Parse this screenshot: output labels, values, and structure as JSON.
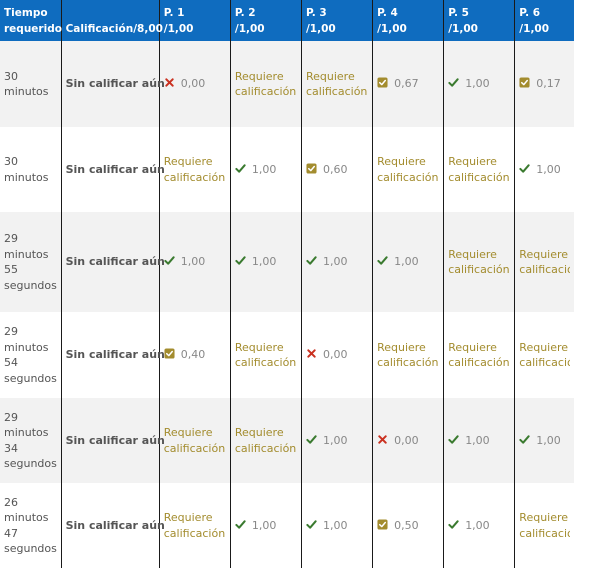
{
  "header": {
    "time_line1": "Tiempo",
    "time_line2": "requerido",
    "grade_label": "Calificación/8,00",
    "questions": [
      {
        "label": "P. 1",
        "max": "/1,00"
      },
      {
        "label": "P. 2",
        "max": "/1,00"
      },
      {
        "label": "P. 3",
        "max": "/1,00"
      },
      {
        "label": "P. 4",
        "max": "/1,00"
      },
      {
        "label": "P. 5",
        "max": "/1,00"
      },
      {
        "label": "P. 6",
        "max": "/1,00"
      }
    ]
  },
  "status_colors": {
    "correct": "#3a7a2f",
    "incorrect": "#ca3120",
    "partial": "#a38c2e",
    "header_bg": "#0f6cbf"
  },
  "rows": [
    {
      "time": [
        "30",
        "minutos"
      ],
      "grade": "Sin calificar aún",
      "cells": [
        {
          "type": "incorrect",
          "icon": "cross-icon",
          "value": "0,00"
        },
        {
          "type": "requires",
          "text": [
            "Requiere",
            "calificación"
          ]
        },
        {
          "type": "requires",
          "text": [
            "Requiere",
            "calificación"
          ]
        },
        {
          "type": "partial",
          "icon": "partial-square-icon",
          "value": "0,67"
        },
        {
          "type": "correct",
          "icon": "check-icon",
          "value": "1,00"
        },
        {
          "type": "partial",
          "icon": "partial-square-icon",
          "value": "0,17"
        }
      ]
    },
    {
      "time": [
        "30",
        "minutos"
      ],
      "grade": "Sin calificar aún",
      "cells": [
        {
          "type": "requires",
          "text": [
            "Requiere",
            "calificación"
          ]
        },
        {
          "type": "correct",
          "icon": "check-icon",
          "value": "1,00"
        },
        {
          "type": "partial",
          "icon": "partial-square-icon",
          "value": "0,60"
        },
        {
          "type": "requires",
          "text": [
            "Requiere",
            "calificación"
          ]
        },
        {
          "type": "requires",
          "text": [
            "Requiere",
            "calificación"
          ]
        },
        {
          "type": "correct",
          "icon": "check-icon",
          "value": "1,00"
        }
      ]
    },
    {
      "time": [
        "29",
        "minutos",
        "55",
        "segundos"
      ],
      "grade": "Sin calificar aún",
      "cells": [
        {
          "type": "correct",
          "icon": "check-icon",
          "value": "1,00"
        },
        {
          "type": "correct",
          "icon": "check-icon",
          "value": "1,00"
        },
        {
          "type": "correct",
          "icon": "check-icon",
          "value": "1,00"
        },
        {
          "type": "correct",
          "icon": "check-icon",
          "value": "1,00"
        },
        {
          "type": "requires",
          "text": [
            "Requiere",
            "calificación"
          ]
        },
        {
          "type": "requires",
          "text": [
            "Requiere",
            "calificació"
          ]
        }
      ]
    },
    {
      "time": [
        "29",
        "minutos",
        "54",
        "segundos"
      ],
      "grade": "Sin calificar aún",
      "cells": [
        {
          "type": "partial",
          "icon": "partial-square-icon",
          "value": "0,40"
        },
        {
          "type": "requires",
          "text": [
            "Requiere",
            "calificación"
          ]
        },
        {
          "type": "incorrect",
          "icon": "cross-icon",
          "value": "0,00"
        },
        {
          "type": "requires",
          "text": [
            "Requiere",
            "calificación"
          ]
        },
        {
          "type": "requires",
          "text": [
            "Requiere",
            "calificación"
          ]
        },
        {
          "type": "requires",
          "text": [
            "Requiere",
            "calificació"
          ]
        }
      ]
    },
    {
      "time": [
        "29",
        "minutos",
        "34",
        "segundos"
      ],
      "grade": "Sin calificar aún",
      "cells": [
        {
          "type": "requires",
          "text": [
            "Requiere",
            "calificación"
          ]
        },
        {
          "type": "requires",
          "text": [
            "Requiere",
            "calificación"
          ]
        },
        {
          "type": "correct",
          "icon": "check-icon",
          "value": "1,00"
        },
        {
          "type": "incorrect",
          "icon": "cross-icon",
          "value": "0,00"
        },
        {
          "type": "correct",
          "icon": "check-icon",
          "value": "1,00"
        },
        {
          "type": "correct",
          "icon": "check-icon",
          "value": "1,00"
        }
      ]
    },
    {
      "time": [
        "26",
        "minutos",
        "47",
        "segundos"
      ],
      "grade": "Sin calificar aún",
      "cells": [
        {
          "type": "requires",
          "text": [
            "Requiere",
            "calificación"
          ]
        },
        {
          "type": "correct",
          "icon": "check-icon",
          "value": "1,00"
        },
        {
          "type": "correct",
          "icon": "check-icon",
          "value": "1,00"
        },
        {
          "type": "partial",
          "icon": "partial-square-icon",
          "value": "0,50"
        },
        {
          "type": "correct",
          "icon": "check-icon",
          "value": "1,00"
        },
        {
          "type": "requires",
          "text": [
            "Requiere",
            "calificació"
          ]
        }
      ]
    }
  ]
}
